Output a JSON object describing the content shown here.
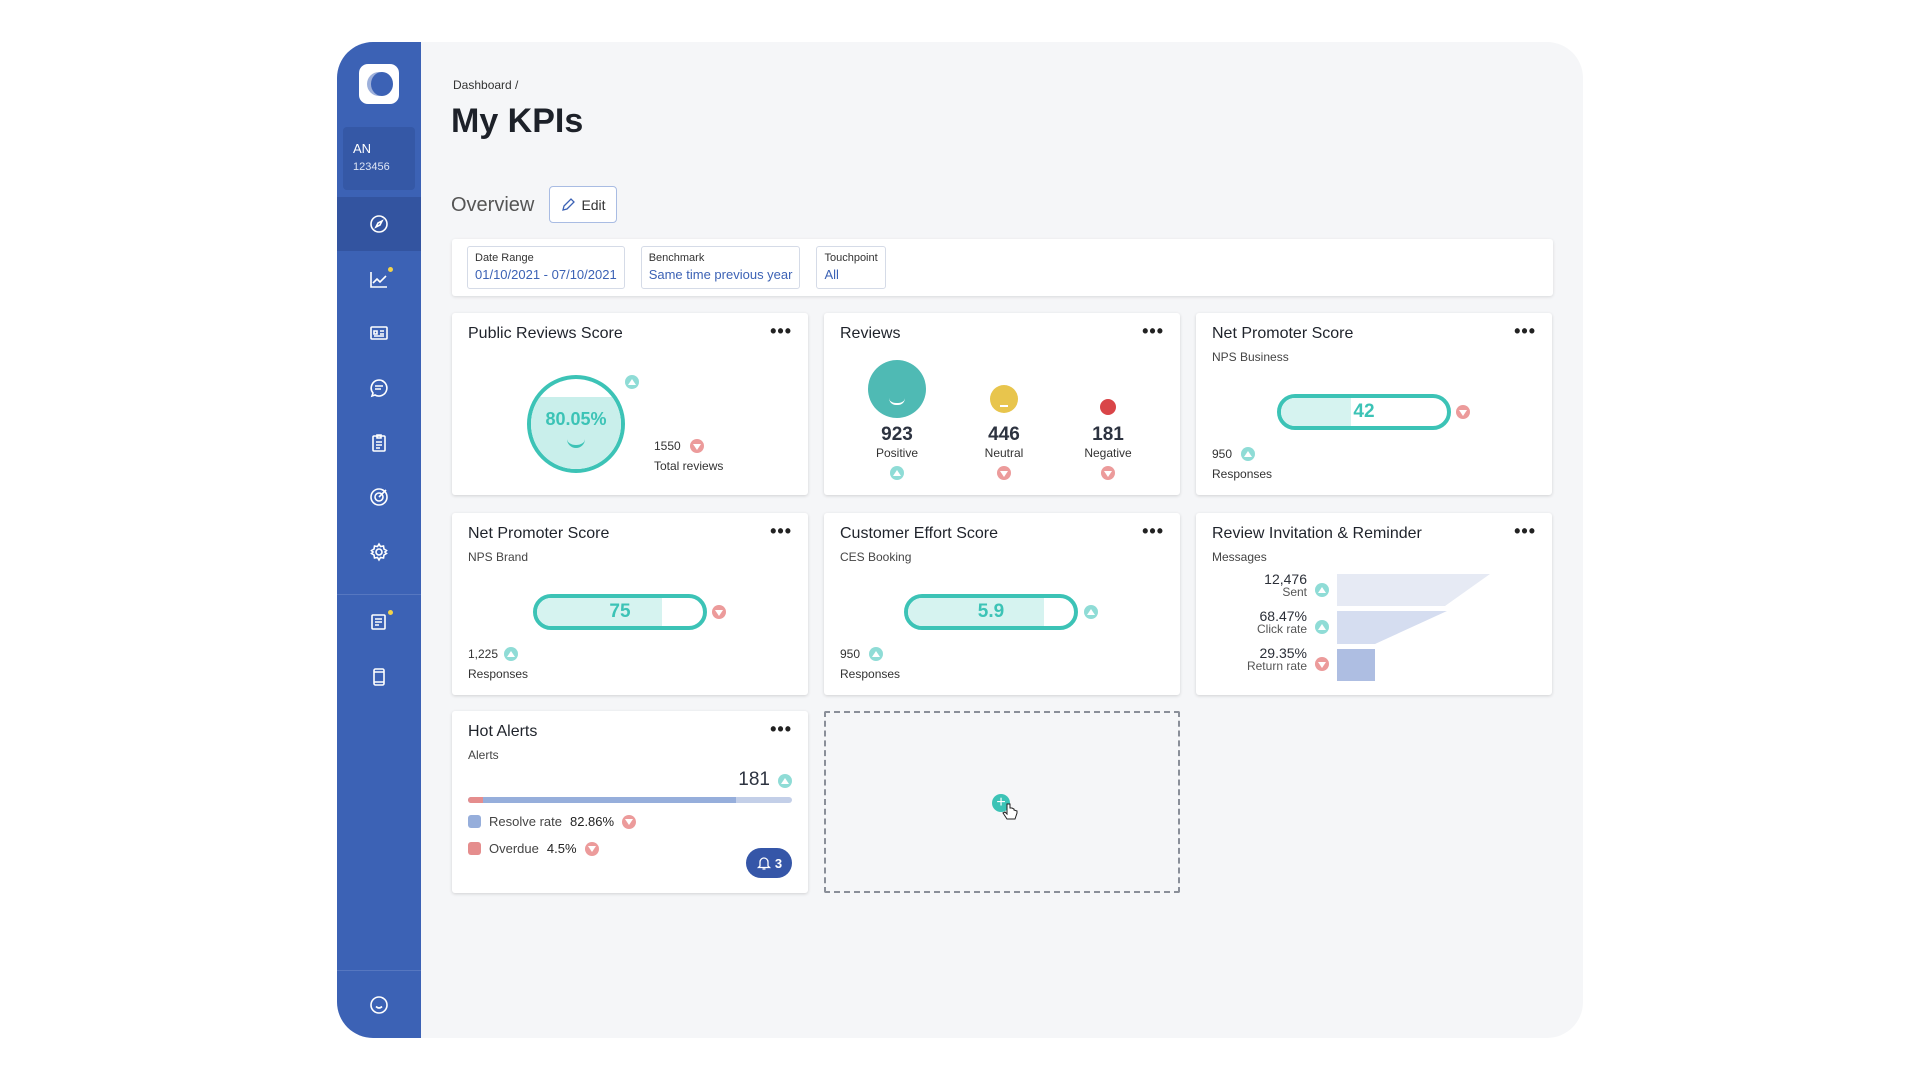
{
  "user": {
    "initials": "AN",
    "id": "123456"
  },
  "breadcrumb": "Dashboard  /",
  "title": "My KPIs",
  "overview": "Overview",
  "edit_label": "Edit",
  "filters": [
    {
      "label": "Date Range",
      "value": "01/10/2021 - 07/10/2021"
    },
    {
      "label": "Benchmark",
      "value": "Same time previous year"
    },
    {
      "label": "Touchpoint",
      "value": "All"
    }
  ],
  "more": "•••",
  "public_reviews": {
    "title": "Public Reviews Score",
    "score": "80.05%",
    "score_fraction": 0.8005,
    "trend": "up",
    "total": "1550",
    "total_trend": "down",
    "total_label": "Total reviews"
  },
  "reviews": {
    "title": "Reviews",
    "items": [
      {
        "value": "923",
        "label": "Positive",
        "trend": "up",
        "color": "#4fbab4"
      },
      {
        "value": "446",
        "label": "Neutral",
        "trend": "down",
        "color": "#e8c54d"
      },
      {
        "value": "181",
        "label": "Negative",
        "trend": "down",
        "color": "#d94548"
      }
    ]
  },
  "nps_business": {
    "title": "Net Promoter Score",
    "subtitle": "NPS Business",
    "value": "42",
    "trend": "down",
    "responses": "950",
    "responses_trend": "up",
    "responses_label": "Responses"
  },
  "nps_brand": {
    "title": "Net Promoter Score",
    "subtitle": "NPS Brand",
    "value": "75",
    "trend": "down",
    "responses": "1,225",
    "responses_trend": "up",
    "responses_label": "Responses"
  },
  "ces": {
    "title": "Customer Effort Score",
    "subtitle": "CES Booking",
    "value": "5.9",
    "trend": "up",
    "responses": "950",
    "responses_trend": "up",
    "responses_label": "Responses"
  },
  "invitation": {
    "title": "Review Invitation & Reminder",
    "subtitle": "Messages",
    "rows": [
      {
        "value": "12,476",
        "label": "Sent",
        "trend": "up"
      },
      {
        "value": "68.47%",
        "label": "Click rate",
        "trend": "up"
      },
      {
        "value": "29.35%",
        "label": "Return rate",
        "trend": "down"
      }
    ]
  },
  "hot_alerts": {
    "title": "Hot Alerts",
    "subtitle": "Alerts",
    "total": "181",
    "trend": "up",
    "resolve_label": "Resolve rate",
    "resolve_value": "82.86%",
    "resolve_trend": "down",
    "overdue_label": "Overdue",
    "overdue_value": "4.5%",
    "overdue_trend": "down",
    "notifications": "3"
  },
  "colors": {
    "sidebar": "#3c62b5",
    "accent": "#3cc3b6",
    "up": "#8fdcd6",
    "down": "#ec9b9b"
  }
}
